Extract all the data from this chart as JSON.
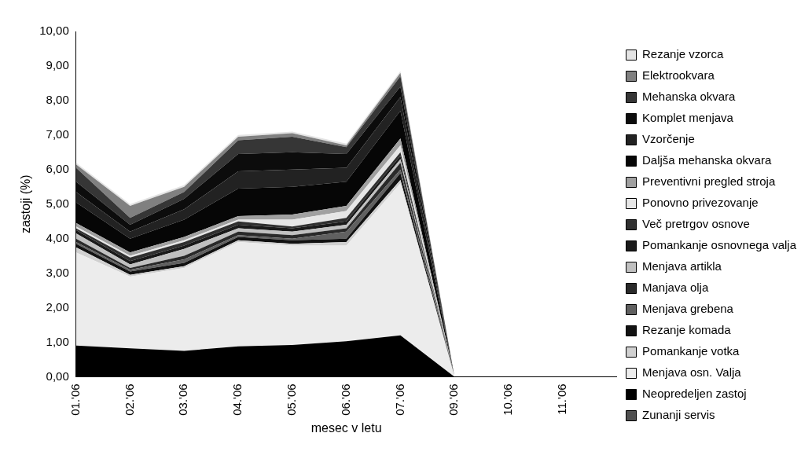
{
  "chart_data": {
    "type": "area",
    "stacked": true,
    "xlabel": "mesec v letu",
    "ylabel": "zastoji (%)",
    "legend": "right",
    "grid": false,
    "marker": "none",
    "categories": [
      "01.'06",
      "02.'06",
      "03.'06",
      "04.'06",
      "05.'06",
      "06.'06",
      "07.'06",
      "09.'06",
      "10.'06",
      "11.'06",
      null
    ],
    "ylim": [
      0,
      10
    ],
    "yticks": [
      {
        "value": 0,
        "label": "0,00"
      },
      {
        "value": 1,
        "label": "1,00"
      },
      {
        "value": 2,
        "label": "2,00"
      },
      {
        "value": 3,
        "label": "3,00"
      },
      {
        "value": 4,
        "label": "4,00"
      },
      {
        "value": 5,
        "label": "5,00"
      },
      {
        "value": 6,
        "label": "6,00"
      },
      {
        "value": 7,
        "label": "7,00"
      },
      {
        "value": 8,
        "label": "8,00"
      },
      {
        "value": 9,
        "label": "9,00"
      },
      {
        "value": 10,
        "label": "10,00"
      }
    ],
    "series": [
      {
        "name": "Zunanji servis",
        "color": "#505050",
        "values": [
          null,
          null,
          null,
          null,
          null,
          null,
          null,
          null,
          null,
          null,
          null
        ]
      },
      {
        "name": "Neopredeljen zastoj",
        "color": "#000000",
        "values": [
          0.9,
          0.82,
          0.75,
          0.88,
          0.92,
          1.03,
          1.2,
          0,
          0,
          0,
          0
        ]
      },
      {
        "name": "Menjava osn. Valja",
        "color": "#ececec",
        "values": [
          2.7,
          2.08,
          2.4,
          3.02,
          2.88,
          2.77,
          4.4,
          0,
          0,
          0,
          0
        ]
      },
      {
        "name": "Pomankanje votka",
        "color": "#d0d0d0",
        "values": [
          0.15,
          0.05,
          0.05,
          0.05,
          0.05,
          0.1,
          0.1,
          0,
          0,
          0,
          0
        ]
      },
      {
        "name": "Rezanje komada",
        "color": "#121212",
        "values": [
          0.1,
          0.1,
          0.1,
          0.1,
          0.1,
          0.1,
          0.2,
          0,
          0,
          0,
          0
        ]
      },
      {
        "name": "Menjava grebena",
        "color": "#606060",
        "values": [
          0.05,
          0.05,
          0.1,
          0.05,
          0.05,
          0.2,
          0.1,
          0,
          0,
          0,
          0
        ]
      },
      {
        "name": "Manjava olja",
        "color": "#2a2a2a",
        "values": [
          0.1,
          0.05,
          0.1,
          0.1,
          0.1,
          0.1,
          0.2,
          0,
          0,
          0,
          0
        ]
      },
      {
        "name": "Menjava artikla",
        "color": "#c0c0c0",
        "values": [
          0.15,
          0.1,
          0.2,
          0.1,
          0.1,
          0.1,
          0.1,
          0,
          0,
          0,
          0
        ]
      },
      {
        "name": "Pomankanje osnovnega valja",
        "color": "#1a1a1a",
        "values": [
          0.1,
          0.1,
          0.1,
          0.1,
          0.1,
          0.1,
          0.1,
          0,
          0,
          0,
          0
        ]
      },
      {
        "name": "Več pretrgov osnove",
        "color": "#303030",
        "values": [
          0.05,
          0.1,
          0.1,
          0.1,
          0.05,
          0.1,
          0.1,
          0,
          0,
          0,
          0
        ]
      },
      {
        "name": "Ponovno privezovanje",
        "color": "#e6e6e6",
        "values": [
          0.05,
          0.05,
          0.05,
          0.05,
          0.2,
          0.2,
          0.2,
          0,
          0,
          0,
          0
        ]
      },
      {
        "name": "Preventivni pregled stroja",
        "color": "#a0a0a0",
        "values": [
          0.1,
          0.1,
          0.1,
          0.1,
          0.15,
          0.15,
          0.2,
          0,
          0,
          0,
          0
        ]
      },
      {
        "name": "Daljša mehanska okvara",
        "color": "#060606",
        "values": [
          0.6,
          0.4,
          0.5,
          0.8,
          0.8,
          0.7,
          0.8,
          0,
          0,
          0,
          0
        ]
      },
      {
        "name": "Vzorčenje",
        "color": "#222222",
        "values": [
          0.3,
          0.2,
          0.3,
          0.5,
          0.5,
          0.4,
          0.4,
          0,
          0,
          0,
          0
        ]
      },
      {
        "name": "Komplet menjava",
        "color": "#0c0c0c",
        "values": [
          0.3,
          0.2,
          0.3,
          0.5,
          0.5,
          0.4,
          0.3,
          0,
          0,
          0,
          0
        ]
      },
      {
        "name": "Mehanska okvara",
        "color": "#363636",
        "values": [
          0.4,
          0.2,
          0.2,
          0.4,
          0.45,
          0.2,
          0.3,
          0,
          0,
          0,
          0
        ]
      },
      {
        "name": "Elektrookvara",
        "color": "#808080",
        "values": [
          0.1,
          0.35,
          0.15,
          0.1,
          0.1,
          0.05,
          0.1,
          0,
          0,
          0,
          0
        ]
      },
      {
        "name": "Rezanje vzorca",
        "color": "#e4e4e4",
        "values": [
          0.05,
          0.05,
          0.05,
          0.05,
          0.05,
          0.05,
          0.05,
          0,
          0,
          0,
          0
        ]
      }
    ]
  }
}
